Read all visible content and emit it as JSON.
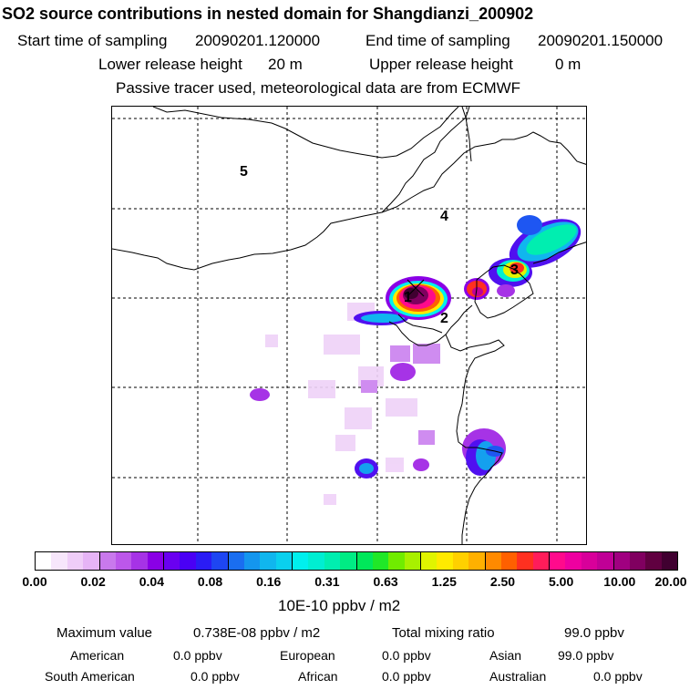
{
  "title": "SO2 source contributions in nested domain for Shangdianzi_200902",
  "start_label": "Start time of sampling",
  "start_value": "20090201.120000",
  "end_label": "End time of sampling",
  "end_value": "20090201.150000",
  "lower_label": "Lower release height",
  "lower_value": "20 m",
  "upper_label": "Upper release height",
  "upper_value": "0 m",
  "tracer_note": "Passive tracer used, meteorological data are from ECMWF",
  "map": {
    "region_labels": [
      "5",
      "4",
      "3",
      "1",
      "2"
    ]
  },
  "colorbar": {
    "ticks": [
      "0.00",
      "0.02",
      "0.04",
      "0.08",
      "0.16",
      "0.31",
      "0.63",
      "1.25",
      "2.50",
      "5.00",
      "10.00",
      "20.00"
    ],
    "colors": [
      "#ffffff",
      "#f7e6fb",
      "#efcdf8",
      "#e6b4f6",
      "#c979ec",
      "#bc57ea",
      "#a633e6",
      "#8a00e6",
      "#6a00f0",
      "#4a00f5",
      "#2a1cf5",
      "#1e46f2",
      "#1a6ef0",
      "#1496ee",
      "#10b6ee",
      "#0ad0ee",
      "#00f0ee",
      "#00eed2",
      "#00eeb0",
      "#00ec84",
      "#00e85a",
      "#20e828",
      "#70ec00",
      "#a8f000",
      "#e0f400",
      "#ffea00",
      "#ffd000",
      "#ffb000",
      "#ff8a00",
      "#ff6000",
      "#ff3020",
      "#ff1c5a",
      "#ff0a8c",
      "#ee00a0",
      "#d8009a",
      "#c00096",
      "#a00080",
      "#800060",
      "#600040",
      "#400030"
    ],
    "unit": "10E-10 ppbv / m2"
  },
  "stats": {
    "max_label": "Maximum value",
    "max_value": "0.738E-08 ppbv / m2",
    "total_label": "Total mixing ratio",
    "total_value": "99.0 ppbv",
    "american_label": "American",
    "american_value": "0.0 ppbv",
    "european_label": "European",
    "european_value": "0.0 ppbv",
    "asian_label": "Asian",
    "asian_value": "99.0 ppbv",
    "south_american_label": "South American",
    "south_american_value": "0.0 ppbv",
    "african_label": "African",
    "african_value": "0.0 ppbv",
    "australian_label": "Australian",
    "australian_value": "0.0 ppbv"
  }
}
